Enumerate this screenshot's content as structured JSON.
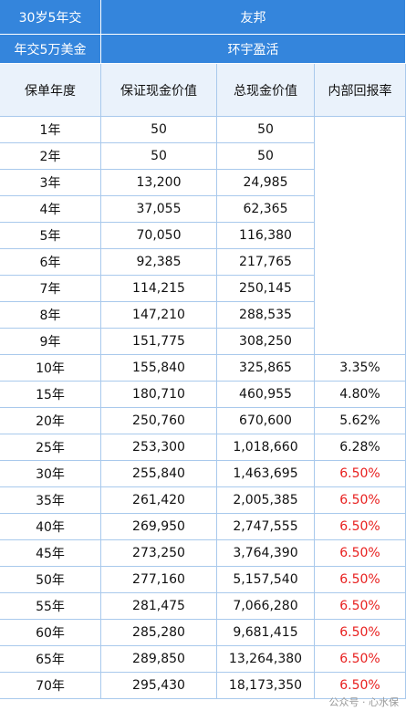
{
  "header": {
    "left": [
      "30岁5年交",
      "年交5万美金"
    ],
    "right": [
      "友邦",
      "环宇盈活"
    ]
  },
  "table": {
    "columns": [
      "保单年度",
      "保证现金价值",
      "总现金价值",
      "内部回报率"
    ],
    "highlight_color": "#e8201f",
    "rows": [
      {
        "cells": [
          "1年",
          "50",
          "50"
        ]
      },
      {
        "cells": [
          "2年",
          "50",
          "50"
        ]
      },
      {
        "cells": [
          "3年",
          "13,200",
          "24,985"
        ]
      },
      {
        "cells": [
          "4年",
          "37,055",
          "62,365"
        ]
      },
      {
        "cells": [
          "5年",
          "70,050",
          "116,380"
        ]
      },
      {
        "cells": [
          "6年",
          "92,385",
          "217,765"
        ]
      },
      {
        "cells": [
          "7年",
          "114,215",
          "250,145"
        ]
      },
      {
        "cells": [
          "8年",
          "147,210",
          "288,535"
        ]
      },
      {
        "cells": [
          "9年",
          "151,775",
          "308,250"
        ]
      },
      {
        "cells": [
          "10年",
          "155,840",
          "325,865",
          "3.35%"
        ]
      },
      {
        "cells": [
          "15年",
          "180,710",
          "460,955",
          "4.80%"
        ]
      },
      {
        "cells": [
          "20年",
          "250,760",
          "670,600",
          "5.62%"
        ]
      },
      {
        "cells": [
          "25年",
          "253,300",
          "1,018,660",
          "6.28%"
        ]
      },
      {
        "cells": [
          "30年",
          "255,840",
          "1,463,695",
          "6.50%"
        ],
        "highlight": true
      },
      {
        "cells": [
          "35年",
          "261,420",
          "2,005,385",
          "6.50%"
        ],
        "highlight": true
      },
      {
        "cells": [
          "40年",
          "269,950",
          "2,747,555",
          "6.50%"
        ],
        "highlight": true
      },
      {
        "cells": [
          "45年",
          "273,250",
          "3,764,390",
          "6.50%"
        ],
        "highlight": true
      },
      {
        "cells": [
          "50年",
          "277,160",
          "5,157,540",
          "6.50%"
        ],
        "highlight": true
      },
      {
        "cells": [
          "55年",
          "281,475",
          "7,066,280",
          "6.50%"
        ],
        "highlight": true
      },
      {
        "cells": [
          "60年",
          "285,280",
          "9,681,415",
          "6.50%"
        ],
        "highlight": true
      },
      {
        "cells": [
          "65年",
          "289,850",
          "13,264,380",
          "6.50%"
        ],
        "highlight": true
      },
      {
        "cells": [
          "70年",
          "295,430",
          "18,173,350",
          "6.50%"
        ],
        "highlight": true
      }
    ]
  },
  "watermark": "公众号 · 心水保"
}
